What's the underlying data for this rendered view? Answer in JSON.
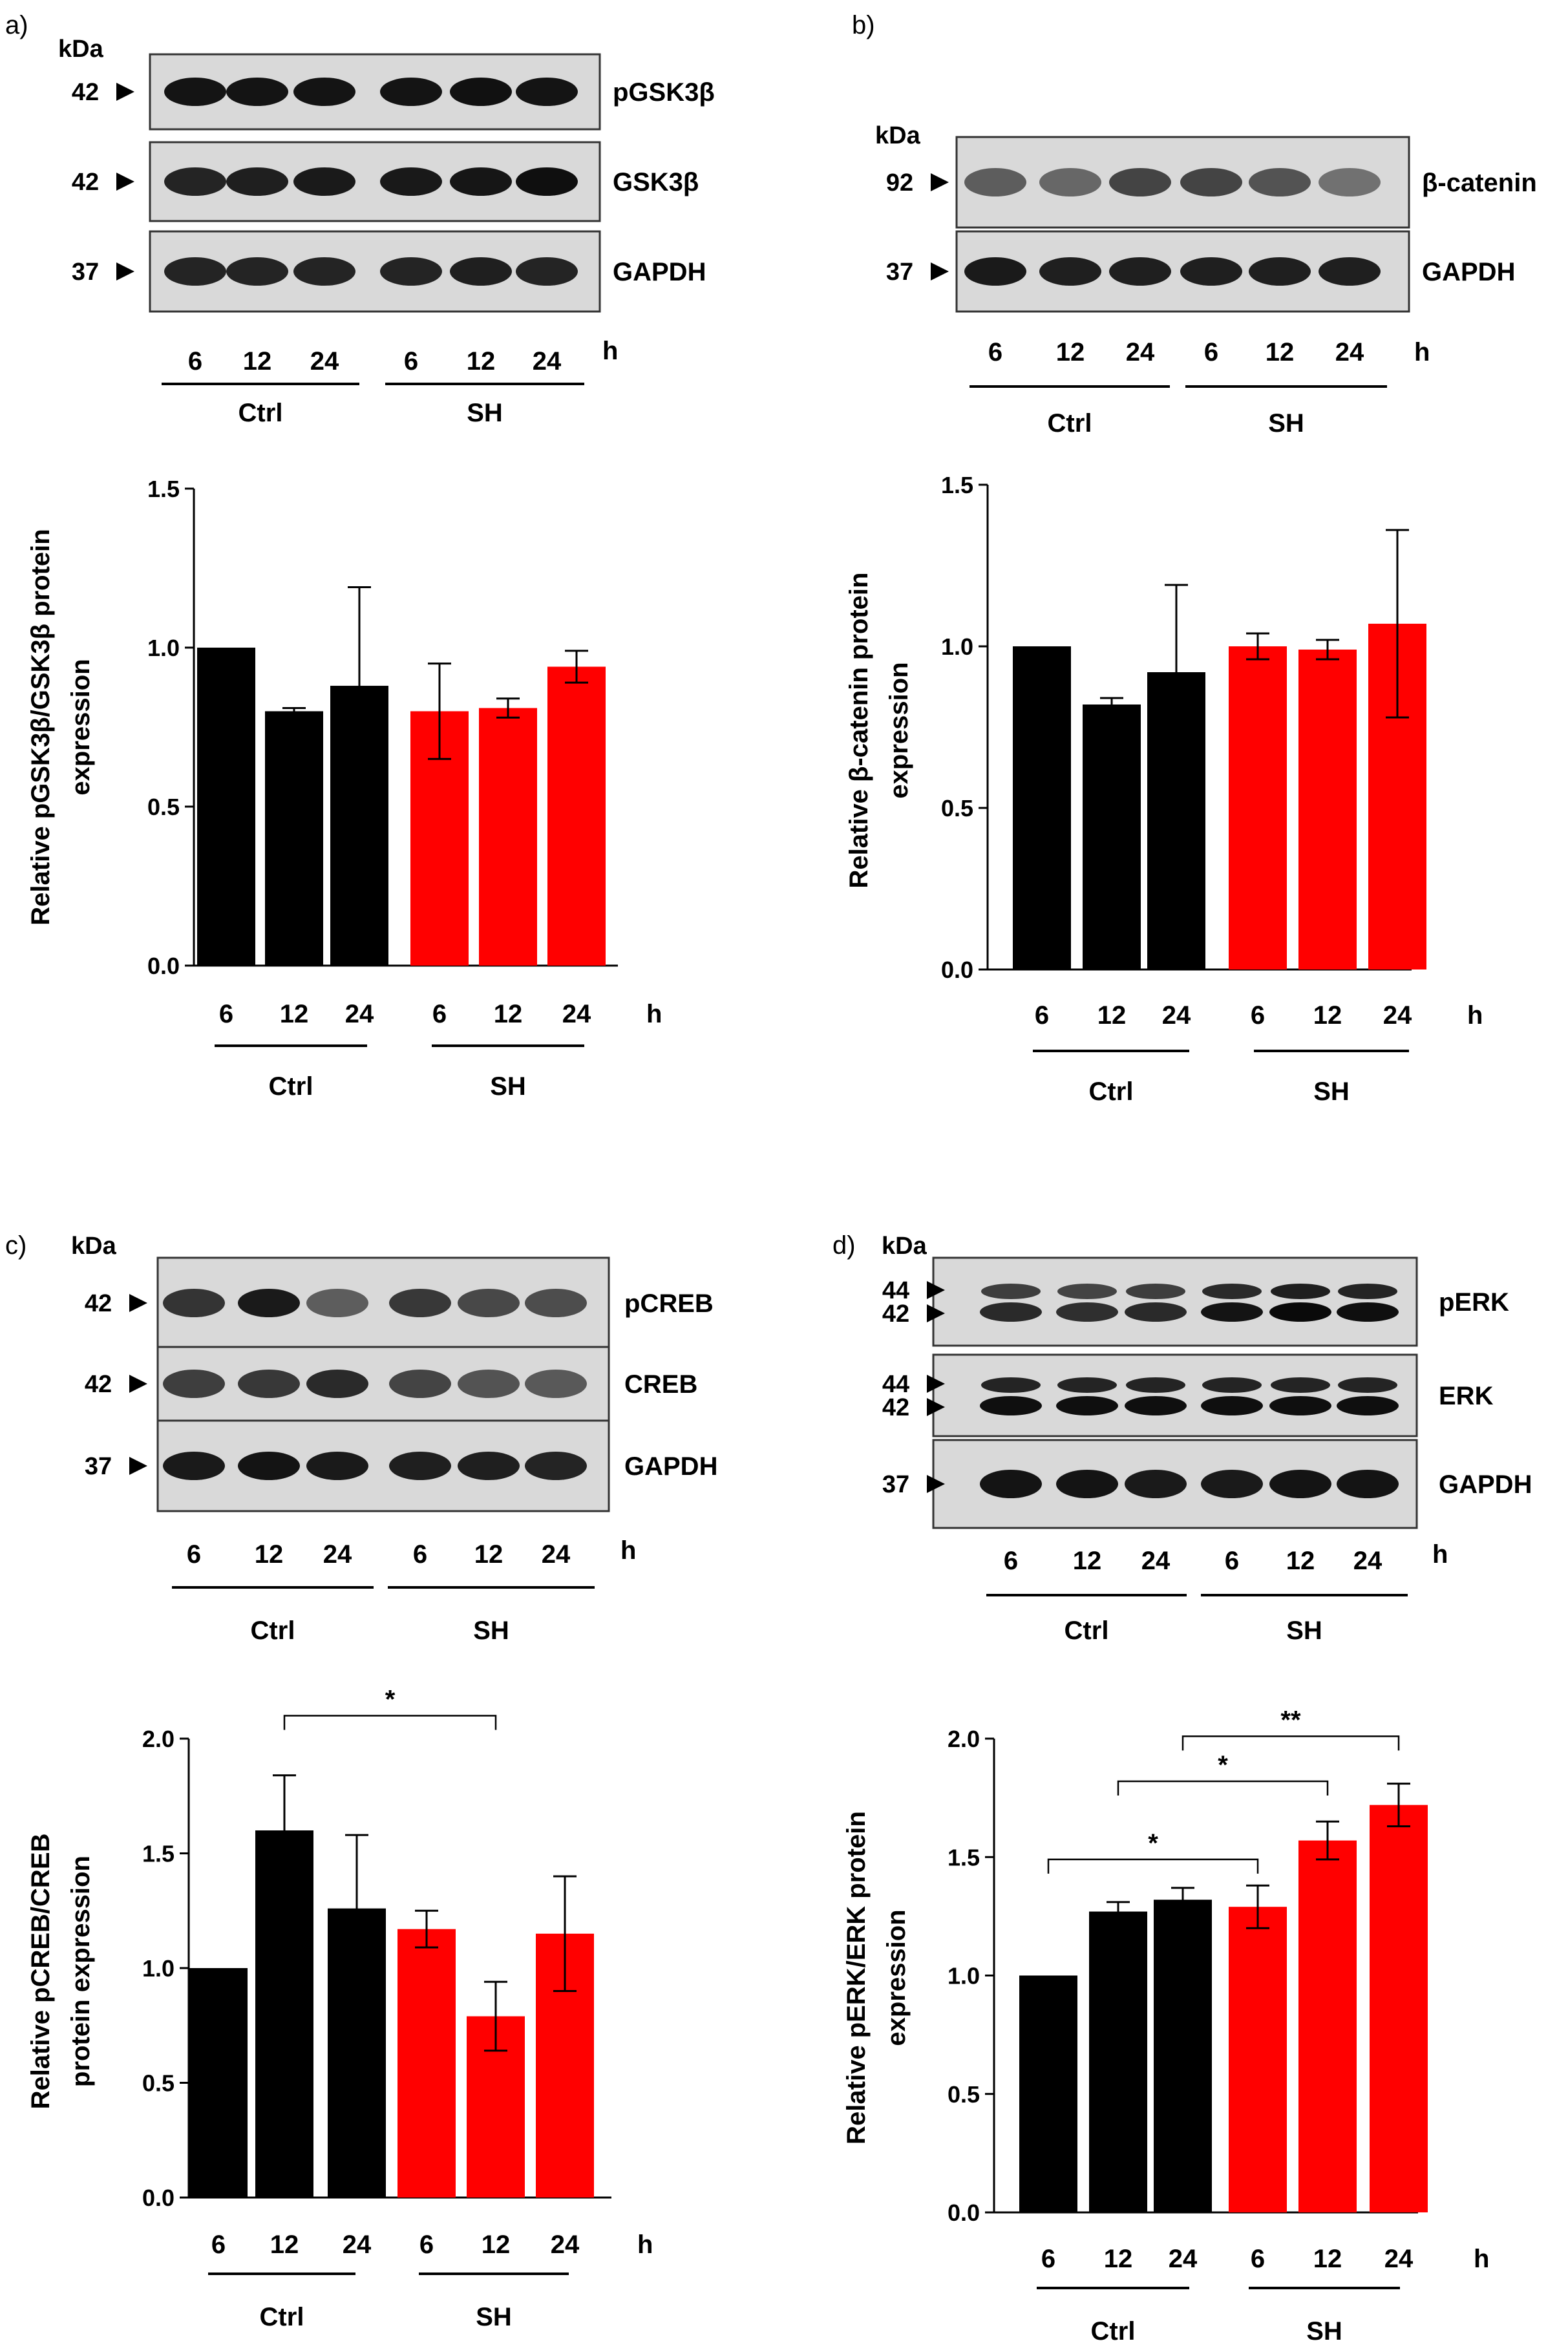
{
  "colors": {
    "ctrl": "#000000",
    "sh": "#ff0000",
    "blot_bg": "#d9d9d9",
    "band": "#111111"
  },
  "chart_data": [
    {
      "panel": "a)",
      "type": "bar",
      "blot": {
        "kda_label": "kDa",
        "rows": [
          {
            "marker": "42",
            "protein": "pGSK3β",
            "intensity": [
              0.95,
              0.95,
              0.95,
              0.95,
              0.97,
              0.95
            ]
          },
          {
            "marker": "42",
            "protein": "GSK3β",
            "intensity": [
              0.88,
              0.9,
              0.92,
              0.93,
              0.94,
              0.98
            ]
          },
          {
            "marker": "37",
            "protein": "GAPDH",
            "intensity": [
              0.88,
              0.88,
              0.88,
              0.88,
              0.9,
              0.88
            ]
          }
        ],
        "time_labels": [
          "6",
          "12",
          "24",
          "6",
          "12",
          "24"
        ],
        "unit": "h",
        "groups": [
          "Ctrl",
          "SH"
        ]
      },
      "categories": [
        "6",
        "12",
        "24",
        "6",
        "12",
        "24"
      ],
      "groups": [
        "Ctrl",
        "SH"
      ],
      "unit": "h",
      "values": [
        1.0,
        0.8,
        0.88,
        0.8,
        0.81,
        0.94
      ],
      "errors": [
        0.0,
        0.01,
        0.31,
        0.15,
        0.03,
        0.05
      ],
      "ylabel": [
        "Relative pGSK3β/GSK3β protein",
        "expression"
      ],
      "ylim": [
        0,
        1.5
      ],
      "yticks": [
        "0.0",
        "0.5",
        "1.0",
        "1.5"
      ],
      "significance": []
    },
    {
      "panel": "b)",
      "type": "bar",
      "blot": {
        "kda_label": "kDa",
        "rows": [
          {
            "marker": "92",
            "protein": "β-catenin",
            "intensity": [
              0.6,
              0.55,
              0.72,
              0.72,
              0.65,
              0.5
            ]
          },
          {
            "marker": "37",
            "protein": "GAPDH",
            "intensity": [
              0.92,
              0.9,
              0.9,
              0.9,
              0.9,
              0.9
            ]
          }
        ],
        "time_labels": [
          "6",
          "12",
          "24",
          "6",
          "12",
          "24"
        ],
        "unit": "h",
        "groups": [
          "Ctrl",
          "SH"
        ]
      },
      "categories": [
        "6",
        "12",
        "24",
        "6",
        "12",
        "24"
      ],
      "groups": [
        "Ctrl",
        "SH"
      ],
      "unit": "h",
      "values": [
        1.0,
        0.82,
        0.92,
        1.0,
        0.99,
        1.07
      ],
      "errors": [
        0.0,
        0.02,
        0.27,
        0.04,
        0.03,
        0.29
      ],
      "ylabel": [
        "Relative β-catenin protein",
        "expression"
      ],
      "ylim": [
        0,
        1.5
      ],
      "yticks": [
        "0.0",
        "0.5",
        "1.0",
        "1.5"
      ],
      "significance": []
    },
    {
      "panel": "c)",
      "type": "bar",
      "blot": {
        "kda_label": "kDa",
        "rows": [
          {
            "marker": "42",
            "protein": "pCREB",
            "intensity": [
              0.8,
              0.92,
              0.6,
              0.78,
              0.7,
              0.68
            ]
          },
          {
            "marker": "42",
            "protein": "CREB",
            "intensity": [
              0.75,
              0.78,
              0.85,
              0.72,
              0.65,
              0.62
            ]
          },
          {
            "marker": "37",
            "protein": "GAPDH",
            "intensity": [
              0.92,
              0.95,
              0.92,
              0.9,
              0.9,
              0.88
            ]
          }
        ],
        "time_labels": [
          "6",
          "12",
          "24",
          "6",
          "12",
          "24"
        ],
        "unit": "h",
        "groups": [
          "Ctrl",
          "SH"
        ]
      },
      "categories": [
        "6",
        "12",
        "24",
        "6",
        "12",
        "24"
      ],
      "groups": [
        "Ctrl",
        "SH"
      ],
      "unit": "h",
      "values": [
        1.0,
        1.6,
        1.26,
        1.17,
        0.79,
        1.15
      ],
      "errors": [
        0.0,
        0.24,
        0.32,
        0.08,
        0.15,
        0.25
      ],
      "ylabel": [
        "Relative pCREB/CREB",
        "protein expression"
      ],
      "ylim": [
        0,
        2.0
      ],
      "yticks": [
        "0.0",
        "0.5",
        "1.0",
        "1.5",
        "2.0"
      ],
      "significance": [
        {
          "from": 1,
          "to": 4,
          "label": "*",
          "y": 2.1
        }
      ]
    },
    {
      "panel": "d)",
      "type": "bar",
      "blot": {
        "kda_label": "kDa",
        "rows": [
          {
            "marker": [
              "44",
              "42"
            ],
            "protein": "pERK",
            "intensity": [
              0.75,
              0.72,
              0.75,
              0.85,
              0.9,
              0.88
            ]
          },
          {
            "marker": [
              "44",
              "42"
            ],
            "protein": "ERK",
            "intensity": [
              0.88,
              0.88,
              0.88,
              0.88,
              0.88,
              0.88
            ]
          },
          {
            "marker": "37",
            "protein": "GAPDH",
            "intensity": [
              0.95,
              0.95,
              0.92,
              0.92,
              0.95,
              0.95
            ]
          }
        ],
        "time_labels": [
          "6",
          "12",
          "24",
          "6",
          "12",
          "24"
        ],
        "unit": "h",
        "groups": [
          "Ctrl",
          "SH"
        ]
      },
      "categories": [
        "6",
        "12",
        "24",
        "6",
        "12",
        "24"
      ],
      "groups": [
        "Ctrl",
        "SH"
      ],
      "unit": "h",
      "values": [
        1.0,
        1.27,
        1.32,
        1.29,
        1.57,
        1.72
      ],
      "errors": [
        0.0,
        0.04,
        0.05,
        0.09,
        0.08,
        0.09
      ],
      "ylabel": [
        "Relative pERK/ERK protein",
        "expression"
      ],
      "ylim": [
        0,
        2.0
      ],
      "yticks": [
        "0.0",
        "0.5",
        "1.0",
        "1.5",
        "2.0"
      ],
      "significance": [
        {
          "from": 0,
          "to": 3,
          "label": "*",
          "y": 1.49
        },
        {
          "from": 1,
          "to": 4,
          "label": "*",
          "y": 1.82
        },
        {
          "from": 2,
          "to": 5,
          "label": "**",
          "y": 2.01
        }
      ]
    }
  ]
}
